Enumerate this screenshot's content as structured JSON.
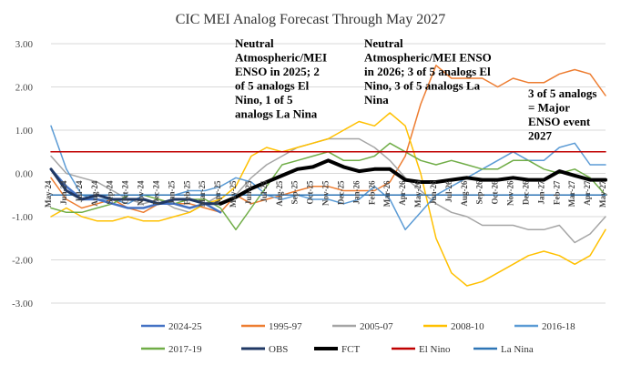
{
  "chart_data": {
    "type": "line",
    "title": "CIC MEI Analog Forecast Through May 2027",
    "xlabel": "",
    "ylabel": "",
    "ylim": [
      -3,
      3
    ],
    "yticks": [
      "3.00",
      "2.00",
      "1.00",
      "0.00",
      "-1.00",
      "-2.00",
      "-3.00"
    ],
    "ytick_values": [
      3,
      2,
      1,
      0,
      -1,
      -2,
      -3
    ],
    "grid": "horizontal",
    "legend_position": "bottom",
    "x": [
      "May-24",
      "Jun-24",
      "Jul-24",
      "Aug-24",
      "Sep-24",
      "Oct-24",
      "Nov-24",
      "Dec-24",
      "Jan-25",
      "Feb-25",
      "Mar-25",
      "Apr-25",
      "May-25",
      "Jun-25",
      "Jul-25",
      "Aug-25",
      "Sep-25",
      "Oct-25",
      "Nov-25",
      "Dec-25",
      "Jan-26",
      "Feb-26",
      "Mar-26",
      "Apr-26",
      "May-26",
      "Jun-26",
      "Jul-26",
      "Aug-26",
      "Sep-26",
      "Oct-26",
      "Nov-26",
      "Dec-26",
      "Jan-27",
      "Feb-27",
      "Mar-27",
      "Apr-27",
      "May-27"
    ],
    "xtick_labels": [
      "May-24",
      "Jun-24",
      "Jul-24",
      "Aug-24",
      "Sep-24",
      "Oct-24",
      "Nov-24",
      "Dec-24",
      "Jan-25",
      "Feb-25",
      "Mar-25",
      "Apr-25",
      "May-25",
      "Jun-25",
      "Jul-25",
      "Aug-25",
      "Sep-25",
      "Oct-25",
      "Nov-25",
      "Dec-25",
      "Jan-26",
      "Feb-26",
      "Mar-26",
      "Apr-26",
      "May-26",
      "Jun-26",
      "Jul-26",
      "Aug-26",
      "Sep-26",
      "Oct-26",
      "Nov-26",
      "Dec-26",
      "Jan-27",
      "Feb-27",
      "Mar-27",
      "Apr-27",
      "May-27"
    ],
    "series": [
      {
        "name": "2024-25",
        "color": "#4472c4",
        "width": 2.5,
        "values": [
          0.1,
          -0.3,
          -0.6,
          -0.6,
          -0.7,
          -0.8,
          -0.8,
          -0.7,
          -0.7,
          -0.8,
          -0.7,
          -0.9,
          null,
          null,
          null,
          null,
          null,
          null,
          null,
          null,
          null,
          null,
          null,
          null,
          null,
          null,
          null,
          null,
          null,
          null,
          null,
          null,
          null,
          null,
          null,
          null,
          null
        ]
      },
      {
        "name": "1995-97",
        "color": "#ed7d31",
        "width": 1.5,
        "values": [
          -0.1,
          -0.6,
          -0.8,
          -0.7,
          -0.6,
          -0.8,
          -0.9,
          -0.7,
          -0.7,
          -0.7,
          -0.8,
          -0.9,
          -0.5,
          -0.7,
          -0.6,
          -0.5,
          -0.4,
          -0.3,
          -0.3,
          -0.4,
          -0.4,
          -0.4,
          -0.2,
          0.4,
          1.6,
          2.5,
          2.2,
          2.2,
          2.2,
          2.0,
          2.2,
          2.1,
          2.1,
          2.3,
          2.4,
          2.3,
          1.8
        ]
      },
      {
        "name": "2005-07",
        "color": "#a5a5a5",
        "width": 1.5,
        "values": [
          0.4,
          0.0,
          -0.1,
          -0.2,
          -0.4,
          -0.6,
          -0.7,
          -0.6,
          -0.8,
          -0.9,
          -0.7,
          -0.5,
          -0.5,
          -0.1,
          0.2,
          0.4,
          0.6,
          0.7,
          0.8,
          0.8,
          0.8,
          0.6,
          0.3,
          -0.1,
          -0.4,
          -0.7,
          -0.9,
          -1.0,
          -1.2,
          -1.2,
          -1.2,
          -1.3,
          -1.3,
          -1.2,
          -1.6,
          -1.4,
          -1.0
        ]
      },
      {
        "name": "2008-10",
        "color": "#ffc000",
        "width": 1.5,
        "values": [
          -1.0,
          -0.8,
          -1.0,
          -1.1,
          -1.1,
          -1.0,
          -1.1,
          -1.1,
          -1.0,
          -0.9,
          -0.7,
          -0.6,
          -0.3,
          0.4,
          0.6,
          0.5,
          0.6,
          0.7,
          0.8,
          1.0,
          1.2,
          1.1,
          1.4,
          1.1,
          0.0,
          -1.5,
          -2.3,
          -2.6,
          -2.5,
          -2.3,
          -2.1,
          -1.9,
          -1.8,
          -1.9,
          -2.1,
          -1.9,
          -1.3
        ]
      },
      {
        "name": "2016-18",
        "color": "#5b9bd5",
        "width": 1.5,
        "values": [
          1.1,
          0.1,
          -0.5,
          -0.6,
          -0.6,
          -0.7,
          -0.5,
          -0.5,
          -0.5,
          -0.4,
          -0.4,
          -0.3,
          -0.1,
          -0.2,
          -0.5,
          -0.6,
          -0.5,
          -0.6,
          -0.6,
          -0.7,
          -0.6,
          -0.3,
          -0.6,
          -1.3,
          -0.9,
          -0.5,
          -0.3,
          -0.1,
          0.1,
          0.3,
          0.5,
          0.3,
          0.3,
          0.6,
          0.7,
          0.2,
          0.2
        ]
      },
      {
        "name": "2017-19",
        "color": "#70ad47",
        "width": 1.5,
        "values": [
          -0.8,
          -0.9,
          -0.9,
          -0.8,
          -0.7,
          -0.5,
          -0.5,
          -0.6,
          -0.7,
          -0.6,
          -0.6,
          -0.8,
          -1.3,
          -0.8,
          -0.3,
          0.2,
          0.3,
          0.4,
          0.5,
          0.3,
          0.3,
          0.4,
          0.7,
          0.5,
          0.3,
          0.2,
          0.3,
          0.2,
          0.1,
          0.1,
          0.3,
          0.3,
          0.1,
          0.0,
          0.1,
          -0.1,
          -0.5
        ]
      },
      {
        "name": "OBS",
        "color": "#203864",
        "width": 3,
        "values": [
          0.1,
          -0.4,
          -0.6,
          -0.5,
          -0.6,
          -0.6,
          -0.6,
          -0.7,
          -0.6,
          -0.6,
          -0.7,
          -0.7,
          null,
          null,
          null,
          null,
          null,
          null,
          null,
          null,
          null,
          null,
          null,
          null,
          null,
          null,
          null,
          null,
          null,
          null,
          null,
          null,
          null,
          null,
          null,
          null,
          null
        ]
      },
      {
        "name": "FCT",
        "color": "#000000",
        "width": 4,
        "values": [
          null,
          null,
          null,
          null,
          null,
          null,
          null,
          null,
          null,
          null,
          null,
          -0.7,
          -0.55,
          -0.35,
          -0.2,
          -0.05,
          0.1,
          0.15,
          0.3,
          0.15,
          0.05,
          0.1,
          0.1,
          -0.15,
          -0.2,
          -0.2,
          -0.15,
          -0.1,
          -0.15,
          -0.15,
          -0.1,
          -0.15,
          -0.15,
          0.05,
          -0.05,
          -0.15,
          -0.15
        ]
      },
      {
        "name": "El Nino",
        "color": "#c00000",
        "width": 1.5,
        "values": [
          0.5,
          0.5,
          0.5,
          0.5,
          0.5,
          0.5,
          0.5,
          0.5,
          0.5,
          0.5,
          0.5,
          0.5,
          0.5,
          0.5,
          0.5,
          0.5,
          0.5,
          0.5,
          0.5,
          0.5,
          0.5,
          0.5,
          0.5,
          0.5,
          0.5,
          0.5,
          0.5,
          0.5,
          0.5,
          0.5,
          0.5,
          0.5,
          0.5,
          0.5,
          0.5,
          0.5,
          0.5
        ]
      },
      {
        "name": "La Nina",
        "color": "#2e75b6",
        "width": 1.5,
        "values": [
          -0.5,
          -0.5,
          -0.5,
          -0.5,
          -0.5,
          -0.5,
          -0.5,
          -0.5,
          -0.5,
          -0.5,
          -0.5,
          -0.5,
          -0.5,
          -0.5,
          -0.5,
          -0.5,
          -0.5,
          -0.5,
          -0.5,
          -0.5,
          -0.5,
          -0.5,
          -0.5,
          -0.5,
          -0.5,
          -0.5,
          -0.5,
          -0.5,
          -0.5,
          -0.5,
          -0.5,
          -0.5,
          -0.5,
          -0.5,
          -0.5,
          -0.5,
          -0.5
        ]
      }
    ],
    "annotations": [
      {
        "lines": [
          "Neutral",
          "Atmospheric/MEI",
          "ENSO in 2025; 2",
          "of 5 analogs El",
          "Nino, 1 of 5",
          "analogs La Nina"
        ]
      },
      {
        "lines": [
          "Neutral",
          "Atmospheric/MEI ENSO",
          "in 2026; 3 of 5 analogs El",
          "Nino, 3 of 5 analogs La",
          "Nina"
        ]
      },
      {
        "lines": [
          "3 of 5 analogs",
          "= Major",
          "ENSO event",
          "2027"
        ]
      }
    ]
  }
}
